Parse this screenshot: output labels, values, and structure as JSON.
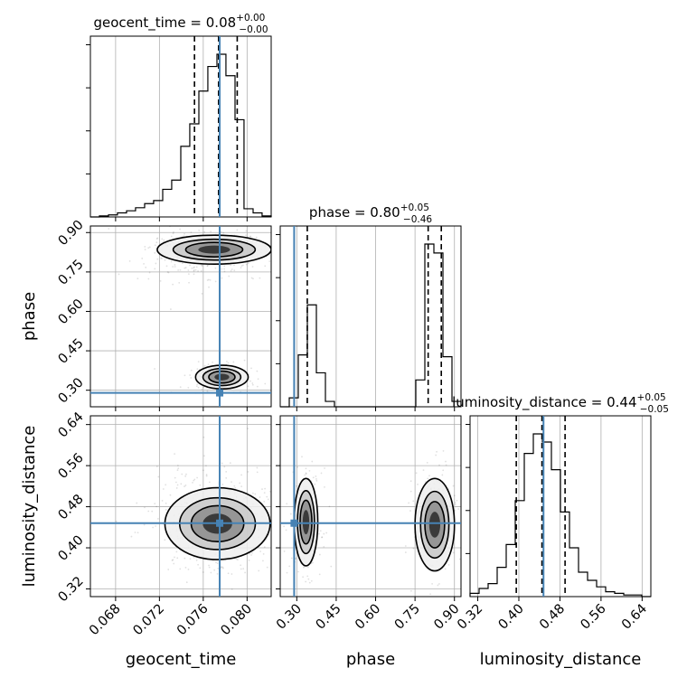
{
  "chart_data": {
    "type": "corner",
    "parameters": [
      {
        "name": "geocent_time",
        "range": [
          0.0657,
          0.0822
        ],
        "ticks": [
          0.068,
          0.072,
          0.076,
          0.08
        ],
        "tick_labels": [
          "0.068",
          "0.072",
          "0.076",
          "0.080"
        ]
      },
      {
        "name": "phase",
        "range": [
          0.237,
          0.925
        ],
        "ticks": [
          0.3,
          0.45,
          0.6,
          0.75,
          0.9
        ],
        "tick_labels": [
          "0.30",
          "0.45",
          "0.60",
          "0.75",
          "0.90"
        ]
      },
      {
        "name": "luminosity_distance",
        "range": [
          0.305,
          0.657
        ],
        "ticks": [
          0.32,
          0.4,
          0.48,
          0.56,
          0.64
        ],
        "tick_labels": [
          "0.32",
          "0.40",
          "0.48",
          "0.56",
          "0.64"
        ]
      }
    ],
    "truths": {
      "geocent_time": 0.0775,
      "phase": 0.29,
      "luminosity_distance": 0.448
    },
    "titles": {
      "geocent_time": {
        "prefix": "geocent_time = 0.08",
        "plus": "+0.00",
        "minus": "−0.00"
      },
      "phase": {
        "prefix": "phase = 0.80",
        "plus": "+0.05",
        "minus": "−0.46"
      },
      "luminosity_distance": {
        "prefix": "luminosity_distance = 0.44",
        "plus": "+0.05",
        "minus": "−0.05"
      }
    },
    "quantiles": {
      "geocent_time": [
        0.0752,
        0.0774,
        0.0791
      ],
      "phase": [
        0.34,
        0.8,
        0.85
      ],
      "luminosity_distance": [
        0.395,
        0.445,
        0.49
      ]
    },
    "histograms": {
      "geocent_time": {
        "edges": [
          0.0657,
          0.06652,
          0.06735,
          0.06817,
          0.069,
          0.06982,
          0.07065,
          0.07147,
          0.0723,
          0.07312,
          0.07395,
          0.07477,
          0.0756,
          0.07642,
          0.07725,
          0.07807,
          0.0789,
          0.07972,
          0.08055,
          0.08137,
          0.0822
        ],
        "counts": [
          0,
          1,
          2,
          4,
          6,
          9,
          13,
          16,
          27,
          36,
          69,
          91,
          123,
          147,
          159,
          138,
          95,
          8,
          4,
          1
        ]
      },
      "phase": {
        "edges": [
          0.237,
          0.2714,
          0.3058,
          0.3402,
          0.3746,
          0.409,
          0.4434,
          0.4778,
          0.5122,
          0.5466,
          0.581,
          0.6154,
          0.6498,
          0.6842,
          0.7186,
          0.753,
          0.7874,
          0.8218,
          0.8562,
          0.8906,
          0.925
        ],
        "counts": [
          0,
          5,
          29,
          57,
          19,
          3,
          0,
          0,
          0,
          0,
          0,
          0,
          0,
          0,
          0,
          15,
          91,
          86,
          28,
          3
        ]
      },
      "luminosity_distance": {
        "edges": [
          0.305,
          0.3226,
          0.3402,
          0.3578,
          0.3754,
          0.393,
          0.4106,
          0.4282,
          0.4458,
          0.4634,
          0.481,
          0.4986,
          0.5162,
          0.5338,
          0.5514,
          0.569,
          0.5866,
          0.6042,
          0.6218,
          0.6394,
          0.657
        ],
        "counts": [
          2,
          5,
          8,
          18,
          32,
          59,
          88,
          100,
          95,
          78,
          52,
          30,
          15,
          10,
          6,
          3,
          2,
          1,
          1,
          0
        ]
      }
    },
    "contour_levels": [
      "0.5",
      "1.0",
      "1.5",
      "2.0"
    ],
    "grid": true,
    "colors": {
      "truth": "#4682b4",
      "line": "#000000",
      "grid": "#b0b0b0"
    }
  }
}
